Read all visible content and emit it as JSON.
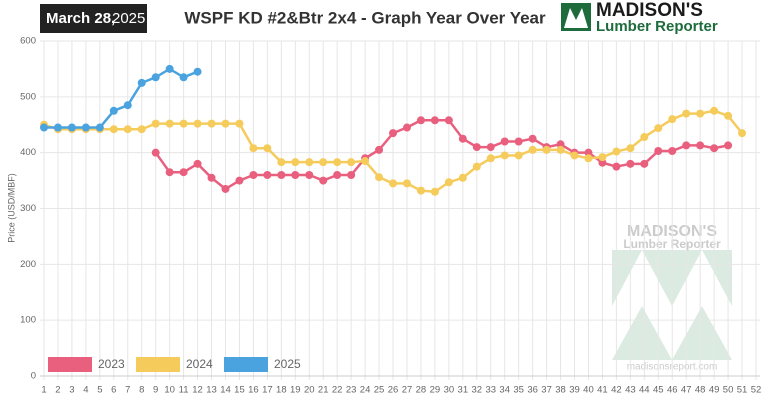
{
  "header": {
    "date": "March 28,",
    "year": "2025",
    "logo_name": "MADISON'S",
    "logo_sub": "Lumber Reporter"
  },
  "watermark": {
    "name": "MADISON'S",
    "sub": "Lumber Reporter",
    "url": "madisonsreport.com"
  },
  "chart_data": {
    "type": "line",
    "title": "WSPF KD #2&Btr 2x4 - Graph Year Over Year",
    "y_label": "Price (USD/MBF)",
    "x": [
      1,
      2,
      3,
      4,
      5,
      6,
      7,
      8,
      9,
      10,
      11,
      12,
      13,
      14,
      15,
      16,
      17,
      18,
      19,
      20,
      21,
      22,
      23,
      24,
      25,
      26,
      27,
      28,
      29,
      30,
      31,
      32,
      33,
      34,
      35,
      36,
      37,
      38,
      39,
      40,
      41,
      42,
      43,
      44,
      45,
      46,
      47,
      48,
      49,
      50,
      51,
      52
    ],
    "xlim": [
      1,
      52
    ],
    "xticks": [
      1,
      2,
      3,
      4,
      5,
      6,
      7,
      8,
      9,
      10,
      11,
      12,
      13,
      14,
      15,
      16,
      17,
      18,
      19,
      20,
      21,
      22,
      23,
      24,
      25,
      26,
      27,
      28,
      29,
      30,
      31,
      32,
      33,
      34,
      35,
      36,
      37,
      38,
      39,
      40,
      41,
      42,
      43,
      44,
      45,
      46,
      47,
      48,
      49,
      50,
      51,
      52
    ],
    "ylim": [
      0,
      600
    ],
    "yticks": [
      0,
      100,
      200,
      300,
      400,
      500,
      600
    ],
    "grid": true,
    "legend": "bottom-left",
    "series": [
      {
        "name": "2023",
        "color": "#e9607f",
        "values": [
          null,
          null,
          null,
          null,
          null,
          null,
          null,
          null,
          400,
          365,
          365,
          380,
          355,
          335,
          350,
          360,
          360,
          360,
          360,
          360,
          350,
          360,
          360,
          390,
          405,
          435,
          445,
          458,
          458,
          458,
          425,
          410,
          410,
          420,
          420,
          425,
          410,
          415,
          400,
          400,
          382,
          375,
          380,
          380,
          403,
          403,
          413,
          413,
          408,
          413,
          null,
          null
        ]
      },
      {
        "name": "2024",
        "color": "#f5cb5c",
        "values": [
          450,
          442,
          442,
          442,
          442,
          442,
          442,
          442,
          452,
          452,
          452,
          452,
          452,
          452,
          452,
          408,
          408,
          383,
          383,
          383,
          383,
          383,
          383,
          385,
          356,
          345,
          345,
          332,
          330,
          347,
          355,
          375,
          390,
          395,
          395,
          405,
          405,
          405,
          395,
          390,
          392,
          402,
          408,
          428,
          444,
          460,
          470,
          470,
          475,
          466,
          435,
          null
        ]
      },
      {
        "name": "2025",
        "color": "#4aa3df",
        "values": [
          445,
          445,
          445,
          445,
          445,
          475,
          485,
          525,
          535,
          550,
          535,
          545,
          null,
          null,
          null,
          null,
          null,
          null,
          null,
          null,
          null,
          null,
          null,
          null,
          null,
          null,
          null,
          null,
          null,
          null,
          null,
          null,
          null,
          null,
          null,
          null,
          null,
          null,
          null,
          null,
          null,
          null,
          null,
          null,
          null,
          null,
          null,
          null,
          null,
          null,
          null,
          null
        ]
      }
    ]
  }
}
